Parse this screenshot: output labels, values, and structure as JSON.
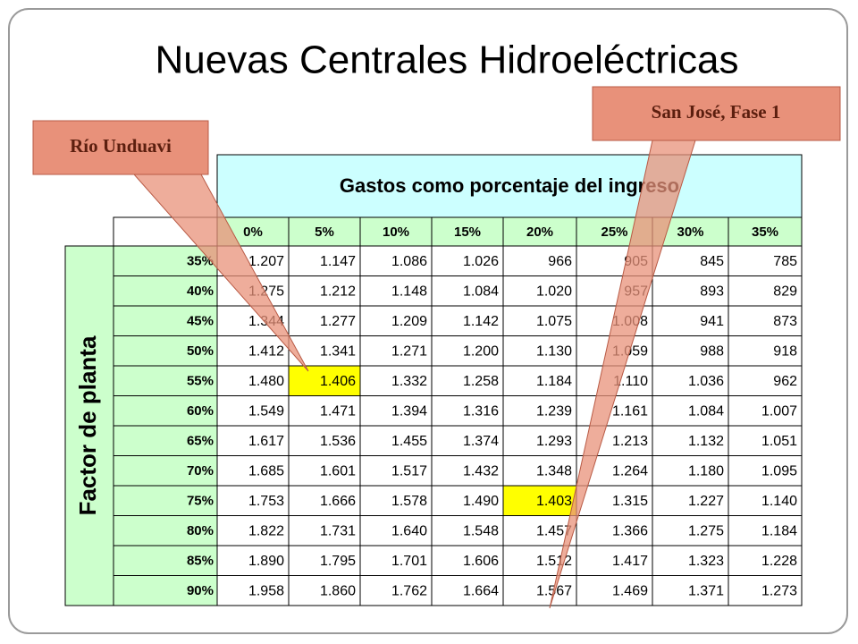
{
  "title": "Nuevas Centrales Hidroeléctricas",
  "callouts": [
    "Río Unduavi",
    "San José, Fase 1"
  ],
  "table": {
    "header": "Gastos como porcentaje del ingreso",
    "row_header": "Factor de planta",
    "columns": [
      "0%",
      "5%",
      "10%",
      "15%",
      "20%",
      "25%",
      "30%",
      "35%"
    ],
    "rows": [
      {
        "label": "35%",
        "values": [
          "1.207",
          "1.147",
          "1.086",
          "1.026",
          "966",
          "905",
          "845",
          "785"
        ]
      },
      {
        "label": "40%",
        "values": [
          "1.275",
          "1.212",
          "1.148",
          "1.084",
          "1.020",
          "957",
          "893",
          "829"
        ]
      },
      {
        "label": "45%",
        "values": [
          "1.344",
          "1.277",
          "1.209",
          "1.142",
          "1.075",
          "1.008",
          "941",
          "873"
        ]
      },
      {
        "label": "50%",
        "values": [
          "1.412",
          "1.341",
          "1.271",
          "1.200",
          "1.130",
          "1.059",
          "988",
          "918"
        ]
      },
      {
        "label": "55%",
        "values": [
          "1.480",
          "1.406",
          "1.332",
          "1.258",
          "1.184",
          "1.110",
          "1.036",
          "962"
        ]
      },
      {
        "label": "60%",
        "values": [
          "1.549",
          "1.471",
          "1.394",
          "1.316",
          "1.239",
          "1.161",
          "1.084",
          "1.007"
        ]
      },
      {
        "label": "65%",
        "values": [
          "1.617",
          "1.536",
          "1.455",
          "1.374",
          "1.293",
          "1.213",
          "1.132",
          "1.051"
        ]
      },
      {
        "label": "70%",
        "values": [
          "1.685",
          "1.601",
          "1.517",
          "1.432",
          "1.348",
          "1.264",
          "1.180",
          "1.095"
        ]
      },
      {
        "label": "75%",
        "values": [
          "1.753",
          "1.666",
          "1.578",
          "1.490",
          "1.403",
          "1.315",
          "1.227",
          "1.140"
        ]
      },
      {
        "label": "80%",
        "values": [
          "1.822",
          "1.731",
          "1.640",
          "1.548",
          "1.457",
          "1.366",
          "1.275",
          "1.184"
        ]
      },
      {
        "label": "85%",
        "values": [
          "1.890",
          "1.795",
          "1.701",
          "1.606",
          "1.512",
          "1.417",
          "1.323",
          "1.228"
        ]
      },
      {
        "label": "90%",
        "values": [
          "1.958",
          "1.860",
          "1.762",
          "1.664",
          "1.567",
          "1.469",
          "1.371",
          "1.273"
        ]
      }
    ]
  }
}
